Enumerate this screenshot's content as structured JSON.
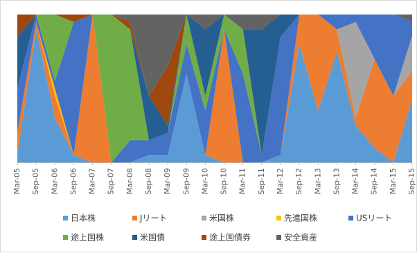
{
  "chart_data": {
    "type": "area",
    "stacked": true,
    "normalized": true,
    "title": "",
    "xlabel": "",
    "ylabel": "",
    "ylim": [
      0,
      1
    ],
    "grid": false,
    "legend_position": "bottom",
    "x": [
      "Mar-05",
      "Sep-05",
      "Mar-06",
      "Sep-06",
      "Mar-07",
      "Sep-07",
      "Mar-08",
      "Sep-08",
      "Mar-09",
      "Sep-09",
      "Mar-10",
      "Sep-10",
      "Mar-11",
      "Sep-11",
      "Mar-12",
      "Sep-12",
      "Mar-13",
      "Sep-13",
      "Mar-14",
      "Sep-14",
      "Mar-15",
      "Sep-15"
    ],
    "x_tick_labels": [
      "Mar-05",
      "Sep-05",
      "Mar-06",
      "Sep-06",
      "Mar-07",
      "Sep-07",
      "Mar-08",
      "Sep-08",
      "Mar-09",
      "Sep-09",
      "Mar-10",
      "Sep-10",
      "Mar-11",
      "Sep-11",
      "Mar-12",
      "Sep-12",
      "Mar-13",
      "Sep-13",
      "Mar-14",
      "Sep-14",
      "Mar-15",
      "Sep-15"
    ],
    "series": [
      {
        "name": "日本株",
        "color": "#5b9bd5",
        "values": [
          0.05,
          0.9,
          0.3,
          0.05,
          0,
          0,
          0,
          0.05,
          0.05,
          0.6,
          0.05,
          0,
          0,
          0,
          0.05,
          0.8,
          0.35,
          0.75,
          0.25,
          0.1,
          0,
          0.45
        ]
      },
      {
        "name": "Jリート",
        "color": "#ed7d31",
        "values": [
          0.15,
          0.05,
          0.15,
          0,
          1,
          0,
          0,
          0,
          0,
          0,
          0,
          0.9,
          0,
          0,
          0,
          0.2,
          0.65,
          0.15,
          0.05,
          0.6,
          0.45,
          0.2
        ]
      },
      {
        "name": "米国株",
        "color": "#a5a5a5",
        "values": [
          0,
          0,
          0,
          0,
          0,
          0,
          0,
          0,
          0,
          0,
          0,
          0,
          0,
          0,
          0,
          0,
          0,
          0,
          0.65,
          0,
          0,
          0.25
        ]
      },
      {
        "name": "先進国株",
        "color": "#ffc000",
        "values": [
          0,
          0,
          0.05,
          0,
          0,
          0,
          0,
          0,
          0,
          0,
          0,
          0,
          0,
          0,
          0,
          0,
          0,
          0,
          0,
          0,
          0,
          0
        ]
      },
      {
        "name": "USリート",
        "color": "#4472c4",
        "values": [
          0.3,
          0.05,
          0.05,
          0.9,
          0,
          0,
          0.15,
          0.1,
          0.15,
          0.2,
          0.3,
          0,
          0.6,
          0.05,
          0.8,
          0,
          0,
          0.1,
          0.05,
          0.3,
          0.55,
          0.1
        ]
      },
      {
        "name": "途上国株",
        "color": "#70ad47",
        "values": [
          0,
          0,
          0.45,
          0,
          0,
          1,
          0.75,
          0,
          0,
          0.2,
          0.1,
          0.1,
          0.3,
          0,
          0,
          0,
          0,
          0,
          0,
          0,
          0,
          0
        ]
      },
      {
        "name": "米国債",
        "color": "#255e91",
        "values": [
          0.35,
          0,
          0,
          0,
          0,
          0,
          0,
          0.3,
          0.05,
          0,
          0.45,
          0,
          0,
          0.85,
          0.15,
          0,
          0,
          0,
          0,
          0,
          0,
          0
        ]
      },
      {
        "name": "途上国債券",
        "color": "#9e480e",
        "values": [
          0.15,
          0,
          0,
          0.05,
          0,
          0,
          0.05,
          0,
          0.4,
          0,
          0,
          0,
          0,
          0,
          0,
          0,
          0,
          0,
          0,
          0,
          0,
          0
        ]
      },
      {
        "name": "安全資産",
        "color": "#636363",
        "values": [
          0,
          0,
          0,
          0,
          0,
          0,
          0.05,
          0.55,
          0.35,
          0,
          0.1,
          0,
          0.1,
          0.1,
          0,
          0,
          0,
          0,
          0,
          0,
          0,
          0.05
        ]
      }
    ]
  }
}
